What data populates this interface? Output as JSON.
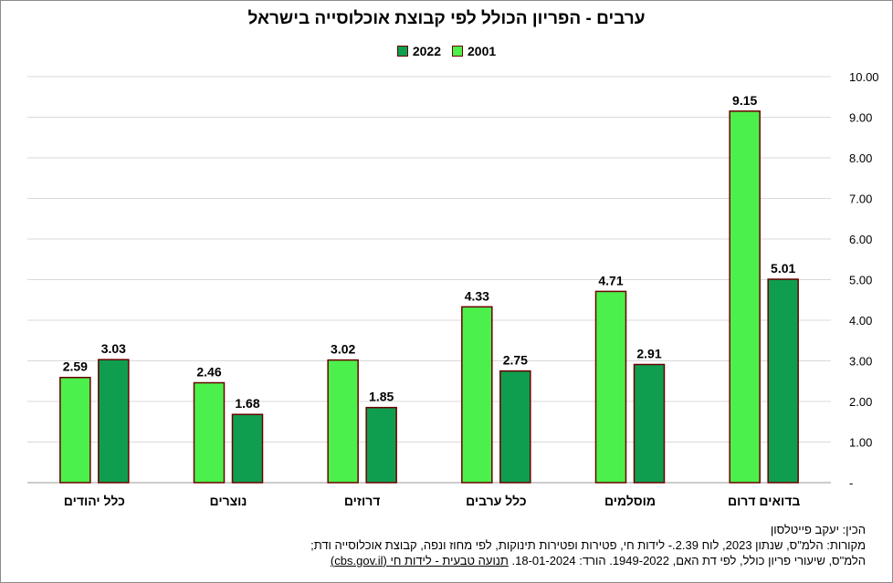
{
  "chart_data": {
    "type": "bar",
    "title": "ערבים - הפריון הכולל  לפי קבוצת אוכלוסייה  בישראל",
    "categories": [
      "כלל יהודים",
      "נוצרים",
      "דרוזים",
      "כלל ערבים",
      "מוסלמים",
      "בדואים דרום"
    ],
    "series": [
      {
        "name": "2001",
        "color": "#4cf04c",
        "values": [
          2.59,
          2.46,
          3.02,
          4.33,
          4.71,
          9.15
        ],
        "labels": [
          "2.59",
          "2.46",
          "3.02",
          "4.33",
          "4.71",
          "9.15"
        ]
      },
      {
        "name": "2022",
        "color": "#0f9e50",
        "values": [
          3.03,
          1.68,
          1.85,
          2.75,
          2.91,
          5.01
        ],
        "labels": [
          "3.03",
          "1.68",
          "1.85",
          "2.75",
          "2.91",
          "5.01"
        ]
      }
    ],
    "ylim": [
      0,
      10
    ],
    "yticks": [
      "-",
      "1.00",
      "2.00",
      "3.00",
      "4.00",
      "5.00",
      "6.00",
      "7.00",
      "8.00",
      "9.00",
      "10.00"
    ],
    "grid": true,
    "legend_position": "top",
    "bar_outline": "#6b0000"
  },
  "footer": {
    "line1": "הכין: יעקב פייטלסון",
    "line2": "מקורות: הלמ\"ס, שנתון 2023,  לוח 2.39.- לידות חי,  פטירות ופטירות תינוקות, לפי מחוז ונפה, קבוצת אוכלוסייה ודת;",
    "line3_text": "הלמ\"ס, שיעורי פריון כולל, לפי דת האם, 1949-2022.  הורד: 18-01-2024.  ",
    "line3_link": "תנועה טבעית - לידות חי (cbs.gov.il)"
  }
}
